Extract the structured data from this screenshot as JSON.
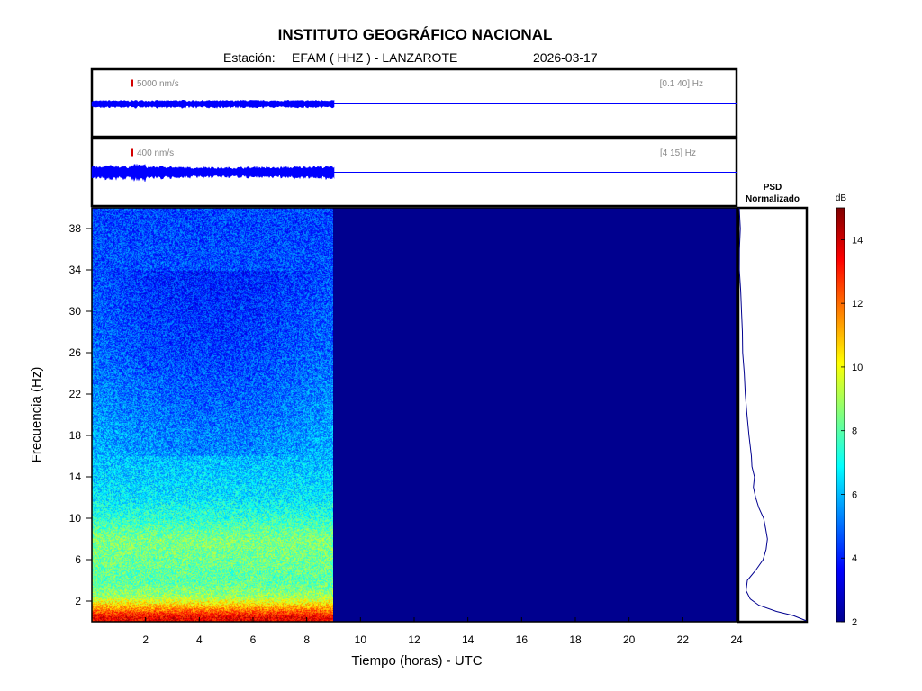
{
  "header": {
    "title": "INSTITUTO GEOGRÁFICO NACIONAL",
    "station_label": "Estación:",
    "station": "EFAM ( HHZ ) - LANZAROTE",
    "date": "2026-03-17"
  },
  "chart_data": [
    {
      "type": "line",
      "name": "seismogram-broadband",
      "scale_label": "5000 nm/s",
      "band_label": "[0.1 40] Hz",
      "xlim": [
        0,
        24
      ],
      "data_end_hour": 9.0,
      "trace": {
        "x_start": 0,
        "x_end": 9.0,
        "envelope_rel": [
          0.32,
          0.34,
          0.33,
          0.35,
          0.34,
          0.33,
          0.36,
          0.34,
          0.35,
          0.33,
          0.34,
          0.36,
          0.34,
          0.33,
          0.35,
          0.34,
          0.35,
          0.37
        ]
      },
      "color": "#0000ff",
      "scale_bar_color": "#d40000"
    },
    {
      "type": "line",
      "name": "seismogram-filtered",
      "scale_label": "400 nm/s",
      "band_label": "[4 15] Hz",
      "xlim": [
        0,
        24
      ],
      "data_end_hour": 9.0,
      "trace": {
        "x_start": 0,
        "x_end": 9.0,
        "envelope_rel": [
          0.45,
          0.55,
          0.5,
          0.62,
          0.48,
          0.5,
          0.42,
          0.4,
          0.45,
          0.38,
          0.4,
          0.42,
          0.44,
          0.4,
          0.43,
          0.46,
          0.5,
          0.48
        ]
      },
      "color": "#0000ff",
      "scale_bar_color": "#d40000"
    },
    {
      "type": "heatmap",
      "name": "spectrogram",
      "xlabel": "Tiempo (horas) - UTC",
      "ylabel": "Frecuencia  (Hz)",
      "xlim": [
        0,
        24
      ],
      "ylim": [
        0,
        40
      ],
      "xticks": [
        2,
        4,
        6,
        8,
        10,
        12,
        14,
        16,
        18,
        20,
        22,
        24
      ],
      "yticks": [
        2,
        6,
        10,
        14,
        18,
        22,
        26,
        30,
        34,
        38
      ],
      "data_end_hour": 9.0,
      "empty_color": "#00008f",
      "frequency_profile_db": [
        {
          "f": 0.5,
          "db": 13.5
        },
        {
          "f": 1.5,
          "db": 11.0
        },
        {
          "f": 2.5,
          "db": 8.8
        },
        {
          "f": 4,
          "db": 8.0
        },
        {
          "f": 6,
          "db": 8.3
        },
        {
          "f": 8,
          "db": 8.5
        },
        {
          "f": 10,
          "db": 7.5
        },
        {
          "f": 12,
          "db": 6.6
        },
        {
          "f": 14,
          "db": 6.3
        },
        {
          "f": 16,
          "db": 6.0
        },
        {
          "f": 18,
          "db": 5.8
        },
        {
          "f": 20,
          "db": 5.6
        },
        {
          "f": 22,
          "db": 5.4
        },
        {
          "f": 24,
          "db": 5.2
        },
        {
          "f": 26,
          "db": 5.0
        },
        {
          "f": 28,
          "db": 4.9
        },
        {
          "f": 30,
          "db": 4.8
        },
        {
          "f": 32,
          "db": 4.7
        },
        {
          "f": 34,
          "db": 4.6
        },
        {
          "f": 36,
          "db": 4.6
        },
        {
          "f": 38,
          "db": 4.5
        },
        {
          "f": 40,
          "db": 4.5
        }
      ]
    },
    {
      "type": "line",
      "name": "psd-normalizado",
      "title_line1": "PSD",
      "title_line2": "Normalizado",
      "ylim": [
        0,
        40
      ],
      "xlim": [
        0,
        1
      ],
      "points": [
        {
          "f": 0.1,
          "p": 1.0
        },
        {
          "f": 0.6,
          "p": 0.82
        },
        {
          "f": 1.0,
          "p": 0.55
        },
        {
          "f": 1.6,
          "p": 0.3
        },
        {
          "f": 2.2,
          "p": 0.16
        },
        {
          "f": 3.0,
          "p": 0.11
        },
        {
          "f": 4.0,
          "p": 0.12
        },
        {
          "f": 5.0,
          "p": 0.25
        },
        {
          "f": 6.0,
          "p": 0.35
        },
        {
          "f": 7.0,
          "p": 0.4
        },
        {
          "f": 8.0,
          "p": 0.42
        },
        {
          "f": 9.0,
          "p": 0.4
        },
        {
          "f": 10.0,
          "p": 0.36
        },
        {
          "f": 11.0,
          "p": 0.3
        },
        {
          "f": 12.0,
          "p": 0.25
        },
        {
          "f": 13.0,
          "p": 0.22
        },
        {
          "f": 14.0,
          "p": 0.23
        },
        {
          "f": 15.0,
          "p": 0.2
        },
        {
          "f": 16.0,
          "p": 0.18
        },
        {
          "f": 18.0,
          "p": 0.14
        },
        {
          "f": 20.0,
          "p": 0.12
        },
        {
          "f": 22.0,
          "p": 0.1
        },
        {
          "f": 24.0,
          "p": 0.08
        },
        {
          "f": 26.0,
          "p": 0.06
        },
        {
          "f": 28.0,
          "p": 0.05
        },
        {
          "f": 30.0,
          "p": 0.03
        },
        {
          "f": 32.0,
          "p": 0.02
        },
        {
          "f": 34.0,
          "p": 0.01
        },
        {
          "f": 36.0,
          "p": 0.01
        },
        {
          "f": 38.0,
          "p": 0.01
        },
        {
          "f": 40.0,
          "p": 0.0
        }
      ],
      "color": "#00008f"
    },
    {
      "type": "heatmap",
      "name": "colorbar",
      "label": "dB",
      "range": [
        2,
        15
      ],
      "ticks": [
        2,
        4,
        6,
        8,
        10,
        12,
        14
      ],
      "colormap": "jet"
    }
  ]
}
